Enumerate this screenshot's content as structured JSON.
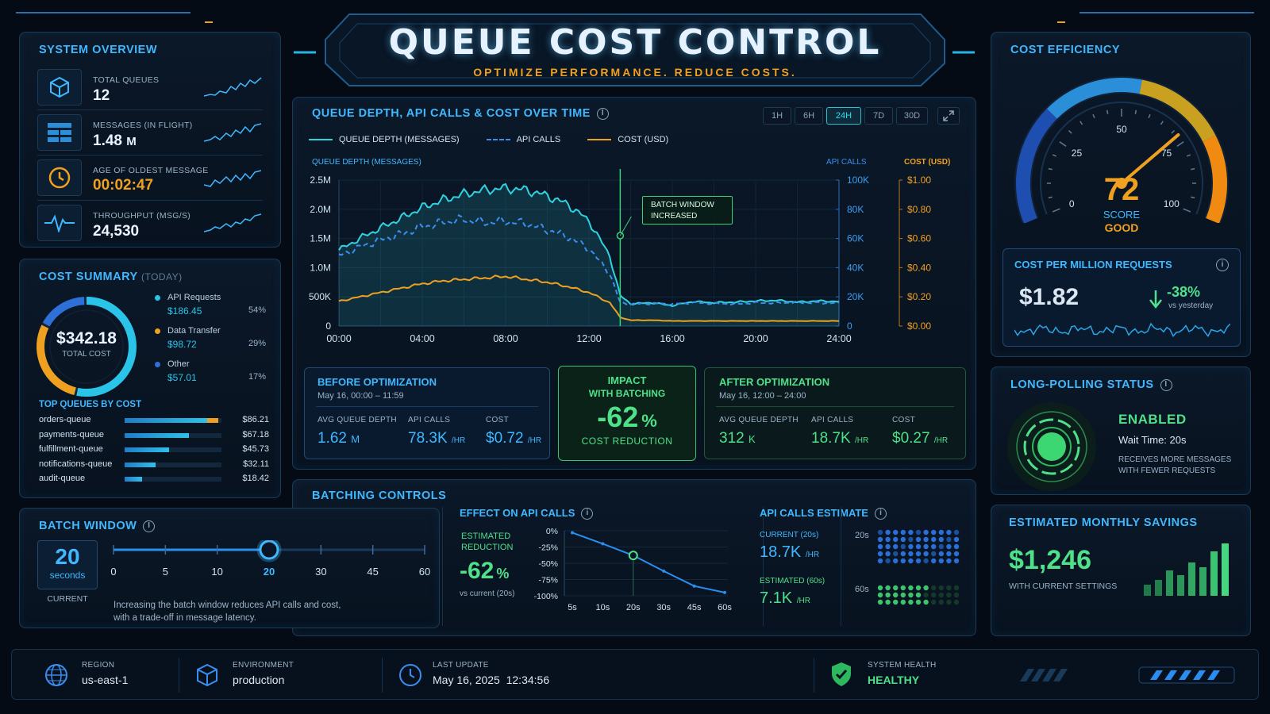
{
  "header": {
    "title": "QUEUE COST CONTROL",
    "subtitle": "OPTIMIZE PERFORMANCE. REDUCE COSTS."
  },
  "overview": {
    "title": "SYSTEM OVERVIEW",
    "items": [
      {
        "icon": "cube-icon",
        "label": "TOTAL QUEUES",
        "value": "12",
        "unit": ""
      },
      {
        "icon": "list-icon",
        "label": "MESSAGES (IN FLIGHT)",
        "value": "1.48",
        "unit": "M"
      },
      {
        "icon": "clock-icon",
        "label": "AGE OF OLDEST MESSAGE",
        "value": "00:02:47",
        "unit": ""
      },
      {
        "icon": "pulse-icon",
        "label": "THROUGHPUT (MSG/S)",
        "value": "24,530",
        "unit": ""
      }
    ]
  },
  "cost_summary": {
    "title": "COST SUMMARY",
    "period": "(TODAY)",
    "total": "$342.18",
    "total_label": "TOTAL COST",
    "items": [
      {
        "name": "API Requests",
        "value": "$186.45",
        "pct": "54%",
        "color": "#29c4e8",
        "share": 0.54
      },
      {
        "name": "Data Transfer",
        "value": "$98.72",
        "pct": "29%",
        "color": "#f0a020",
        "share": 0.29
      },
      {
        "name": "Other",
        "value": "$57.01",
        "pct": "17%",
        "color": "#2f6fd8",
        "share": 0.17
      }
    ],
    "top_title": "TOP QUEUES BY COST",
    "top": [
      {
        "name": "orders-queue",
        "value": "$86.21",
        "frac": 0.97
      },
      {
        "name": "payments-queue",
        "value": "$67.18",
        "frac": 0.66
      },
      {
        "name": "fulfillment-queue",
        "value": "$45.73",
        "frac": 0.46
      },
      {
        "name": "notifications-queue",
        "value": "$32.11",
        "frac": 0.32
      },
      {
        "name": "audit-queue",
        "value": "$18.42",
        "frac": 0.18
      }
    ]
  },
  "chart": {
    "title": "QUEUE DEPTH, API CALLS & COST OVER TIME",
    "ranges": [
      "1H",
      "6H",
      "24H",
      "7D",
      "30D"
    ],
    "active_range": "24H",
    "legend": [
      "QUEUE DEPTH (MESSAGES)",
      "API CALLS",
      "COST (USD)"
    ],
    "left_axis_title": "QUEUE DEPTH (MESSAGES)",
    "api_axis_title": "API CALLS",
    "cost_axis_title": "COST (USD)",
    "annotation": [
      "BATCH WINDOW",
      "INCREASED"
    ],
    "colors": {
      "depth": "#2fd3e0",
      "api": "#3a8ef0",
      "cost": "#f0a020"
    }
  },
  "chart_data": {
    "type": "line",
    "x": [
      "00:00",
      "01:00",
      "02:00",
      "03:00",
      "04:00",
      "05:00",
      "06:00",
      "07:00",
      "08:00",
      "09:00",
      "10:00",
      "11:00",
      "12:00",
      "13:00",
      "13:30",
      "14:00",
      "15:00",
      "16:00",
      "17:00",
      "18:00",
      "19:00",
      "20:00",
      "21:00",
      "22:00",
      "23:00",
      "24:00"
    ],
    "x_ticks": [
      "00:00",
      "04:00",
      "08:00",
      "12:00",
      "16:00",
      "20:00",
      "24:00"
    ],
    "y_ticks": [
      "0",
      "500K",
      "1.0M",
      "1.5M",
      "2.0M",
      "2.5M"
    ],
    "api_ticks": [
      "0",
      "20K",
      "40K",
      "60K",
      "80K",
      "100K"
    ],
    "cost_ticks": [
      "$0.00",
      "$0.20",
      "$0.40",
      "$0.60",
      "$0.80",
      "$1.00"
    ],
    "ylim": [
      0,
      2500000
    ],
    "y2lim": [
      0,
      100000
    ],
    "y3lim": [
      0,
      1.0
    ],
    "series": [
      {
        "name": "QUEUE DEPTH (MESSAGES)",
        "axis": "left",
        "values": [
          1300000,
          1500000,
          1680000,
          1850000,
          2030000,
          2160000,
          2260000,
          2330000,
          2360000,
          2330000,
          2230000,
          2080000,
          1800000,
          1200000,
          520000,
          380000,
          400000,
          350000,
          420000,
          400000,
          410000,
          430000,
          440000,
          410000,
          430000,
          420000
        ]
      },
      {
        "name": "API CALLS",
        "axis": "api",
        "values": [
          48000,
          54000,
          59000,
          63000,
          68000,
          71000,
          73000,
          71000,
          72000,
          70000,
          66000,
          61000,
          53000,
          36000,
          16000,
          15000,
          15500,
          15000,
          16000,
          15500,
          15000,
          16000,
          15800,
          16200,
          15800,
          16000
        ]
      },
      {
        "name": "COST (USD)",
        "axis": "cost",
        "values": [
          0.17,
          0.2,
          0.23,
          0.26,
          0.29,
          0.31,
          0.32,
          0.33,
          0.34,
          0.32,
          0.3,
          0.27,
          0.23,
          0.16,
          0.06,
          0.04,
          0.04,
          0.035,
          0.035,
          0.035,
          0.035,
          0.035,
          0.035,
          0.035,
          0.035,
          0.035
        ]
      }
    ],
    "annotation_x": "13:30"
  },
  "before": {
    "title": "BEFORE OPTIMIZATION",
    "range": "May 16, 00:00 – 11:59",
    "m": [
      {
        "label": "AVG QUEUE DEPTH",
        "value": "1.62",
        "unit": "M"
      },
      {
        "label": "API CALLS",
        "value": "78.3K",
        "unit": "/HR"
      },
      {
        "label": "COST",
        "value": "$0.72",
        "unit": "/HR"
      }
    ]
  },
  "impact": {
    "title": "IMPACT",
    "title2": "WITH BATCHING",
    "value": "-62",
    "unit": "%",
    "label": "COST REDUCTION"
  },
  "after": {
    "title": "AFTER OPTIMIZATION",
    "range": "May 16, 12:00 – 24:00",
    "m": [
      {
        "label": "AVG QUEUE DEPTH",
        "value": "312",
        "unit": "K"
      },
      {
        "label": "API CALLS",
        "value": "18.7K",
        "unit": "/HR"
      },
      {
        "label": "COST",
        "value": "$0.27",
        "unit": "/HR"
      }
    ]
  },
  "batching": {
    "title": "BATCHING CONTROLS"
  },
  "batch_window": {
    "title": "BATCH WINDOW",
    "value": "20",
    "unit": "seconds",
    "current": "CURRENT",
    "ticks": [
      "0",
      "5",
      "10",
      "20",
      "30",
      "45",
      "60"
    ],
    "selected": "20",
    "hint1": "Increasing the batch window reduces API calls and cost,",
    "hint2": "with a trade-off in message latency."
  },
  "effect": {
    "title": "EFFECT ON API CALLS",
    "est_label1": "ESTIMATED",
    "est_label2": "REDUCTION",
    "value": "-62",
    "unit": "%",
    "vs": "vs current (20s)",
    "y_ticks": [
      "0%",
      "-25%",
      "-50%",
      "-75%",
      "-100%"
    ],
    "x_ticks": [
      "5s",
      "10s",
      "20s",
      "30s",
      "45s",
      "60s"
    ],
    "curve": [
      -3,
      -20,
      -38,
      -62,
      -85,
      -95
    ],
    "selected": "20s"
  },
  "estimate": {
    "title": "API CALLS ESTIMATE",
    "current_label": "CURRENT (20s)",
    "current": "18.7K",
    "current_unit": "/HR",
    "est_label": "ESTIMATED (60s)",
    "est": "7.1K",
    "est_unit": "/HR",
    "row1": "20s",
    "row2": "60s"
  },
  "efficiency": {
    "title": "COST EFFICIENCY",
    "score": "72",
    "score_label": "SCORE",
    "grade": "GOOD",
    "score_num": 72,
    "ticks": [
      "0",
      "25",
      "50",
      "75",
      "100"
    ]
  },
  "cpm": {
    "title": "COST PER MILLION REQUESTS",
    "value": "$1.82",
    "change": "-38%",
    "vs": "vs yesterday"
  },
  "polling": {
    "title": "LONG-POLLING STATUS",
    "status": "ENABLED",
    "wait": "Wait Time: 20s",
    "desc1": "RECEIVES MORE MESSAGES",
    "desc2": "WITH FEWER REQUESTS"
  },
  "savings": {
    "title": "ESTIMATED MONTHLY SAVINGS",
    "value": "$1,246",
    "label": "WITH CURRENT SETTINGS"
  },
  "footer": {
    "region_label": "REGION",
    "region": "us-east-1",
    "env_label": "ENVIRONMENT",
    "env": "production",
    "update_label": "LAST UPDATE",
    "update": "May 16, 2025  12:34:56",
    "health_label": "SYSTEM HEALTH",
    "health": "HEALTHY"
  }
}
